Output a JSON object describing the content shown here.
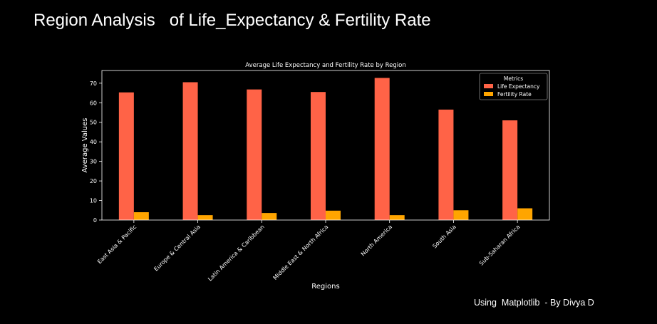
{
  "header": {
    "title": "Region Analysis   of Life_Expectancy & Fertility Rate"
  },
  "footer": {
    "credit": "Using  Matplotlib  - By Divya D"
  },
  "colors": {
    "background": "#000000",
    "life_expectancy": "#ff6347",
    "fertility_rate": "#ffa500",
    "axes": "#ffffff"
  },
  "chart_data": {
    "type": "bar",
    "title": "Average Life Expectancy and Fertility Rate by Region",
    "xlabel": "Regions",
    "ylabel": "Average Values",
    "categories": [
      "East Asia & Pacific",
      "Europe & Central Asia",
      "Latin America & Caribbean",
      "Middle East & North Africa",
      "North America",
      "South Asia",
      "Sub-Saharan Africa"
    ],
    "series": [
      {
        "name": "Life Expectancy",
        "color": "#ff6347",
        "values": [
          65.3,
          70.5,
          66.8,
          65.5,
          72.7,
          56.5,
          51.0
        ]
      },
      {
        "name": "Fertility Rate",
        "color": "#ffa500",
        "values": [
          4.0,
          2.5,
          3.6,
          4.8,
          2.5,
          5.0,
          6.0
        ]
      }
    ],
    "yticks": [
      0,
      10,
      20,
      30,
      40,
      50,
      60,
      70
    ],
    "ylim": [
      0,
      76.5
    ],
    "legend": {
      "title": "Metrics",
      "position": "top-right"
    },
    "grid": false
  }
}
